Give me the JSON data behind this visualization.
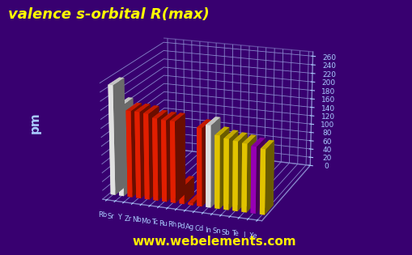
{
  "title": "valence s-orbital R(max)",
  "ylabel": "pm",
  "background_color": "#380070",
  "title_color": "#ffff00",
  "title_fontsize": 13,
  "website": "www.webelements.com",
  "elements": [
    "Rb",
    "Sr",
    "Y",
    "Zr",
    "Nb",
    "Mo",
    "Tc",
    "Ru",
    "Rh",
    "Pd",
    "Ag",
    "Cd",
    "In",
    "Sn",
    "Sb",
    "Te",
    "I",
    "Xe"
  ],
  "values": [
    248,
    205,
    195,
    195,
    193,
    185,
    183,
    183,
    42,
    5,
    175,
    183,
    163,
    158,
    155,
    152,
    148,
    145
  ],
  "colors": [
    "#ffffff",
    "#ffffff",
    "#ff2200",
    "#ff2200",
    "#ff2200",
    "#ff2200",
    "#ff2200",
    "#ff2200",
    "#ff2200",
    "#ff2200",
    "#ff2200",
    "#ffffff",
    "#ffdd00",
    "#ffdd00",
    "#ffdd00",
    "#ffdd00",
    "#aa00cc",
    "#ffdd00"
  ],
  "ylim": [
    0,
    270
  ],
  "yticks": [
    0,
    20,
    40,
    60,
    80,
    100,
    120,
    140,
    160,
    180,
    200,
    220,
    240,
    260
  ],
  "grid_color": "#8888cc",
  "axis_color": "#aaccff",
  "bar_depth": 0.55,
  "bar_width": 0.55,
  "elev": 18,
  "azim": -70
}
